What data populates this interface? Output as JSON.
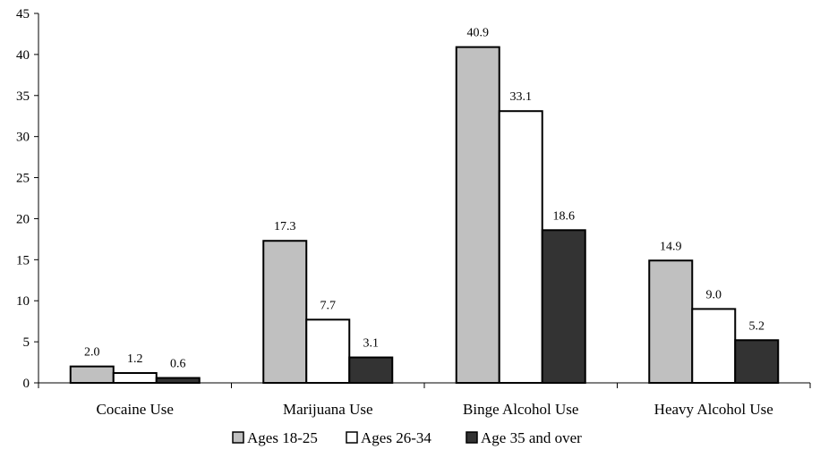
{
  "chart_data": {
    "type": "bar",
    "categories": [
      "Cocaine Use",
      "Marijuana Use",
      "Binge Alcohol Use",
      "Heavy Alcohol Use"
    ],
    "series": [
      {
        "name": "Ages 18-25",
        "values": [
          2.0,
          17.3,
          40.9,
          14.9
        ],
        "labels": [
          "2.0",
          "17.3",
          "40.9",
          "14.9"
        ],
        "color": "#c0c0c0"
      },
      {
        "name": "Ages 26-34",
        "values": [
          1.2,
          7.7,
          33.1,
          9.0
        ],
        "labels": [
          "1.2",
          "7.7",
          "33.1",
          "9.0"
        ],
        "color": "#ffffff"
      },
      {
        "name": "Age 35 and over",
        "values": [
          0.6,
          3.1,
          18.6,
          5.2
        ],
        "labels": [
          "0.6",
          "3.1",
          "18.6",
          "5.2"
        ],
        "color": "#333333"
      }
    ],
    "yticks": [
      "0",
      "5",
      "10",
      "15",
      "20",
      "25",
      "30",
      "35",
      "40",
      "45"
    ],
    "ylim": [
      0,
      45
    ],
    "grid": false,
    "legend": "bottom",
    "title": "",
    "xlabel": "",
    "ylabel": ""
  }
}
